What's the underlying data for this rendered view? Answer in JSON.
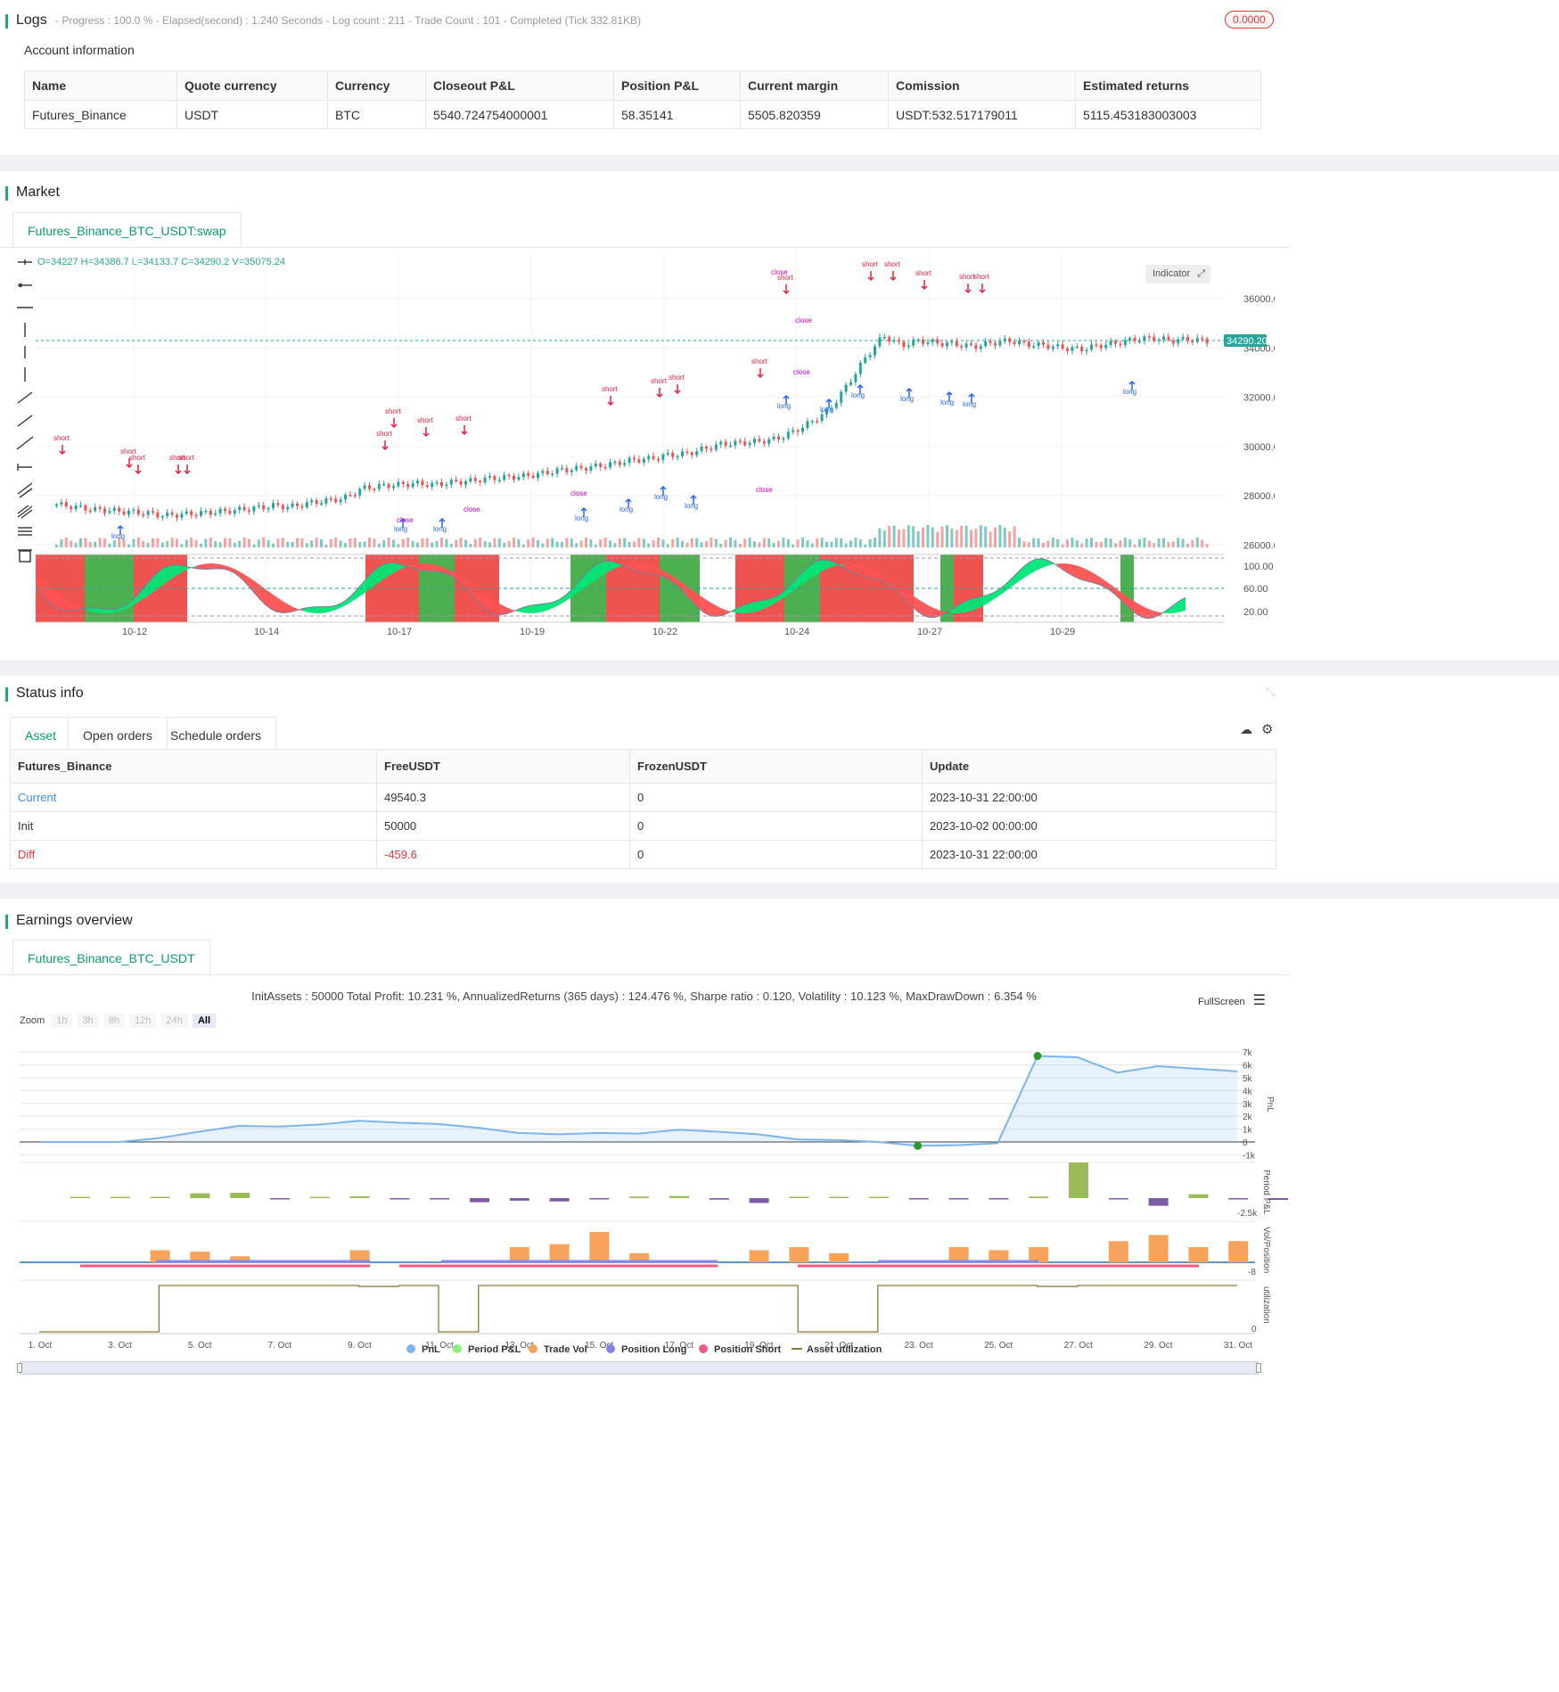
{
  "logs": {
    "title": "Logs",
    "status_line": "- Progress : 100.0 % - Elapsed(second) : 1.240  Seconds - Log count : 211 - Trade Count : 101 - Completed (Tick 332.81KB)",
    "badge": "0.0000",
    "account_title": "Account information",
    "columns": [
      "Name",
      "Quote currency",
      "Currency",
      "Closeout P&L",
      "Position P&L",
      "Current margin",
      "Comission",
      "Estimated returns"
    ],
    "row": [
      "Futures_Binance",
      "USDT",
      "BTC",
      "5540.724754000001",
      "58.35141",
      "5505.820359",
      "USDT:532.517179011",
      "5115.453183003003"
    ]
  },
  "market": {
    "title": "Market",
    "tab": "Futures_Binance_BTC_USDT:swap",
    "ohlc": "O=34227 H=34386.7 L=34133.7 C=34290.2 V=35075.24",
    "indicator_btn": "Indicator",
    "last_price": "34290.20",
    "price_ticks": [
      "36000.00",
      "34000.00",
      "32000.00",
      "30000.00",
      "28000.00",
      "26000.00"
    ],
    "osc_ticks": [
      "100.00",
      "60.00",
      "20.00"
    ],
    "date_ticks": [
      "10-12",
      "10-14",
      "10-17",
      "10-19",
      "10-22",
      "10-24",
      "10-27",
      "10-29"
    ],
    "candles": [
      27650,
      27550,
      27450,
      27400,
      27350,
      27300,
      27200,
      27250,
      27300,
      27350,
      27420,
      27500,
      27600,
      27550,
      27700,
      27800,
      27900,
      28300,
      28400,
      28450,
      28500,
      28450,
      28550,
      28600,
      28700,
      28750,
      28800,
      28900,
      29050,
      29100,
      29200,
      29300,
      29450,
      29500,
      29650,
      29700,
      29900,
      30100,
      30150,
      30200,
      30300,
      30600,
      31000,
      31500,
      32500,
      33600,
      34500,
      34100,
      34300,
      34200,
      34150,
      34050,
      34200,
      34300,
      34150,
      34100,
      34000,
      33950,
      34100,
      34200,
      34350,
      34400,
      34300,
      34350,
      34290
    ],
    "colors": {
      "up": "#26a69a",
      "down": "#ef5350",
      "signal_long": "#2962ff",
      "signal_short": "#e91e3c",
      "close": "#c800c8"
    }
  },
  "status": {
    "title": "Status info",
    "tabs": [
      "Asset",
      "Open orders",
      "Schedule orders"
    ],
    "columns": [
      "Futures_Binance",
      "FreeUSDT",
      "FrozenUSDT",
      "Update"
    ],
    "rows": [
      [
        "Current",
        "49540.3",
        "0",
        "2023-10-31 22:00:00"
      ],
      [
        "Init",
        "50000",
        "0",
        "2023-10-02 00:00:00"
      ],
      [
        "Diff",
        "-459.6",
        "0",
        "2023-10-31 22:00:00"
      ]
    ]
  },
  "earnings": {
    "title": "Earnings overview",
    "tab": "Futures_Binance_BTC_USDT",
    "summary": "InitAssets : 50000 Total Profit: 10.231 %, AnnualizedReturns (365 days) : 124.476 %, Sharpe ratio : 0.120, Volatility : 10.123 %, MaxDrawDown : 6.354 %",
    "fullscreen": "FullScreen",
    "zoom_label": "Zoom",
    "zoom_buttons": [
      "1h",
      "3h",
      "8h",
      "12h",
      "24h",
      "All"
    ],
    "pnl_ticks": [
      "7k",
      "6k",
      "5k",
      "4k",
      "3k",
      "2k",
      "1k",
      "0",
      "-1k"
    ],
    "axis_labels": [
      "PnL",
      "Period P&L",
      "Vol/Position",
      "utilization"
    ],
    "period_tick": "-2.5k",
    "vol_tick": "-8",
    "util_tick": "0",
    "date_ticks": [
      "1. Oct",
      "3. Oct",
      "5. Oct",
      "7. Oct",
      "9. Oct",
      "11. Oct",
      "13. Oct",
      "15. Oct",
      "17. Oct",
      "19. Oct",
      "21. Oct",
      "23. Oct",
      "25. Oct",
      "27. Oct",
      "29. Oct",
      "31. Oct"
    ],
    "legend": [
      {
        "label": "PnL",
        "color": "#7cb5ec"
      },
      {
        "label": "Period P&L",
        "color": "#90ed7d"
      },
      {
        "label": "Trade Vol",
        "color": "#f7a35c"
      },
      {
        "label": "Position Long",
        "color": "#8085e9"
      },
      {
        "label": "Position Short",
        "color": "#f15c80"
      },
      {
        "label": "Asset utilization",
        "color": "#8d7b3a"
      }
    ],
    "pnl_series": [
      0,
      0,
      0,
      300,
      800,
      1250,
      1200,
      1350,
      1650,
      1500,
      1400,
      1100,
      700,
      600,
      700,
      650,
      950,
      800,
      600,
      200,
      150,
      0,
      -300,
      -250,
      -100,
      6700,
      6600,
      5400,
      5900,
      5700,
      5500
    ],
    "period_pnl": [
      0,
      0,
      0,
      380,
      420,
      -60,
      60,
      140,
      -80,
      -60,
      -320,
      -200,
      -260,
      -60,
      120,
      160,
      -120,
      -380,
      0,
      0,
      0,
      -60,
      -60,
      -40,
      120,
      2800,
      -100,
      -600,
      300,
      -100,
      -140,
      -40
    ],
    "trade_vol": [
      0,
      0,
      4,
      3.5,
      2,
      0,
      0,
      4,
      0,
      0,
      0,
      5,
      6,
      10,
      3,
      0,
      0,
      4,
      5,
      3,
      0,
      0,
      5,
      4,
      5,
      0,
      7,
      9,
      5,
      7,
      0,
      2
    ],
    "utilization": [
      0,
      0,
      0,
      1,
      1,
      1,
      1,
      1,
      0.98,
      1,
      0,
      1,
      1,
      1,
      1,
      1,
      1,
      1,
      1,
      0,
      0,
      1,
      1,
      1,
      1,
      0.98,
      1,
      1,
      1,
      1,
      1
    ]
  }
}
